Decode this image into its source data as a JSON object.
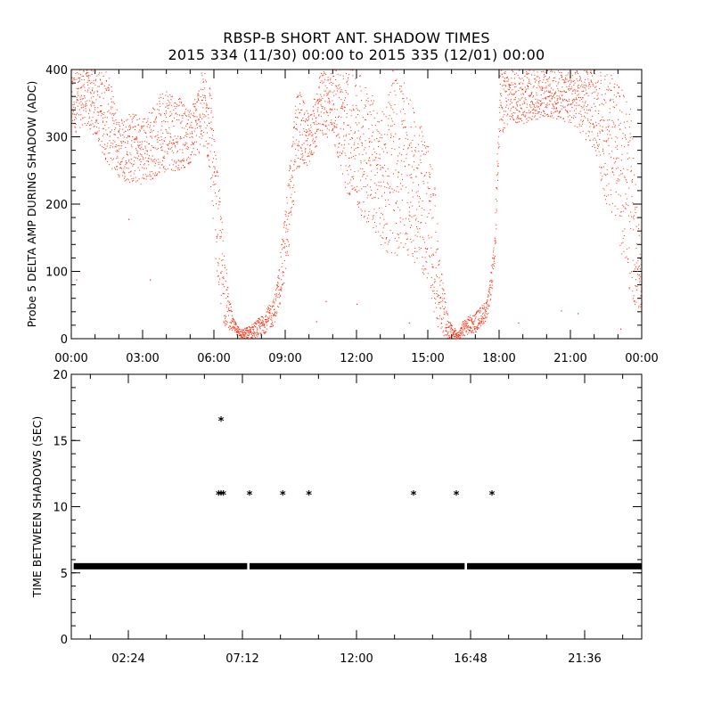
{
  "title_line1": "RBSP-B SHORT ANT. SHADOW TIMES",
  "title_line2": "2015 334 (11/30) 00:00 to 2015 335 (12/01) 00:00",
  "chart_data": [
    {
      "type": "scatter",
      "ylabel": "Probe 5 DELTA AMP DURING SHADOW (ADC)",
      "x_unit": "hours since 2015-11-30 00:00",
      "xlim": [
        0,
        24
      ],
      "ylim": [
        0,
        400
      ],
      "xticks": [
        0,
        3,
        6,
        9,
        12,
        15,
        18,
        21,
        24
      ],
      "xtick_labels": [
        "00:00",
        "03:00",
        "06:00",
        "09:00",
        "12:00",
        "15:00",
        "18:00",
        "21:00",
        "00:00"
      ],
      "yticks": [
        0,
        100,
        200,
        300,
        400
      ],
      "color": "#ff2200",
      "envelope": {
        "x": [
          0,
          0.5,
          1.0,
          1.5,
          2.0,
          2.5,
          3.0,
          3.5,
          4.0,
          4.5,
          5.0,
          5.5,
          5.8,
          6.0,
          6.2,
          6.4,
          6.6,
          6.8,
          7.0,
          7.2,
          7.5,
          8.0,
          8.5,
          8.7,
          9.0,
          9.5,
          10.0,
          10.5,
          11.0,
          11.5,
          12.0,
          12.5,
          13.0,
          13.5,
          14.0,
          14.5,
          15.0,
          15.3,
          15.5,
          15.8,
          16.0,
          16.3,
          16.5,
          17.0,
          17.5,
          17.8,
          18.0,
          18.5,
          19.0,
          20.0,
          21.0,
          22.0,
          22.5,
          23.0,
          23.5,
          24.0
        ],
        "upper": [
          400,
          400,
          400,
          400,
          330,
          340,
          330,
          350,
          380,
          360,
          340,
          400,
          400,
          300,
          230,
          150,
          70,
          30,
          20,
          15,
          20,
          35,
          60,
          100,
          200,
          380,
          330,
          400,
          400,
          400,
          400,
          380,
          330,
          400,
          380,
          330,
          300,
          220,
          120,
          40,
          20,
          10,
          30,
          40,
          60,
          150,
          400,
          400,
          400,
          400,
          400,
          400,
          400,
          380,
          350,
          100
        ],
        "lower": [
          300,
          320,
          300,
          260,
          240,
          230,
          230,
          240,
          250,
          250,
          260,
          280,
          250,
          150,
          60,
          20,
          15,
          10,
          5,
          0,
          0,
          5,
          20,
          40,
          90,
          250,
          260,
          300,
          300,
          220,
          190,
          170,
          140,
          120,
          130,
          110,
          80,
          30,
          10,
          0,
          0,
          0,
          5,
          10,
          30,
          100,
          300,
          320,
          320,
          330,
          320,
          280,
          200,
          150,
          60,
          40
        ]
      },
      "scattered_outliers": [
        {
          "x": 2.4,
          "y": 178
        },
        {
          "x": 3.3,
          "y": 88
        },
        {
          "x": 0.2,
          "y": 88
        },
        {
          "x": 10.3,
          "y": 26
        },
        {
          "x": 10.7,
          "y": 56
        },
        {
          "x": 12.0,
          "y": 52
        },
        {
          "x": 14.2,
          "y": 24
        },
        {
          "x": 18.8,
          "y": 24
        },
        {
          "x": 20.6,
          "y": 42
        },
        {
          "x": 21.3,
          "y": 38
        },
        {
          "x": 23.1,
          "y": 15
        }
      ]
    },
    {
      "type": "scatter",
      "ylabel": "TIME BETWEEN SHADOWS (SEC)",
      "x_unit": "hours since 2015-11-30 00:00",
      "xlim": [
        0,
        24
      ],
      "ylim": [
        0,
        20
      ],
      "xticks": [
        2.4,
        7.2,
        12.0,
        16.8,
        21.6
      ],
      "xtick_labels": [
        "02:24",
        "07:12",
        "12:00",
        "16:48",
        "21:36"
      ],
      "yticks": [
        0,
        5,
        10,
        15,
        20
      ],
      "color": "#000000",
      "baseline": {
        "y": 5.5,
        "segments": [
          [
            0.1,
            7.4
          ],
          [
            7.5,
            16.55
          ],
          [
            16.65,
            24
          ]
        ]
      },
      "points": [
        {
          "x": 6.2,
          "y": 10.9
        },
        {
          "x": 6.3,
          "y": 10.9
        },
        {
          "x": 6.4,
          "y": 10.9
        },
        {
          "x": 6.3,
          "y": 16.5
        },
        {
          "x": 7.5,
          "y": 10.9
        },
        {
          "x": 8.9,
          "y": 10.9
        },
        {
          "x": 10.0,
          "y": 10.9
        },
        {
          "x": 14.4,
          "y": 10.9
        },
        {
          "x": 16.2,
          "y": 10.9
        },
        {
          "x": 17.7,
          "y": 10.9
        }
      ]
    }
  ]
}
